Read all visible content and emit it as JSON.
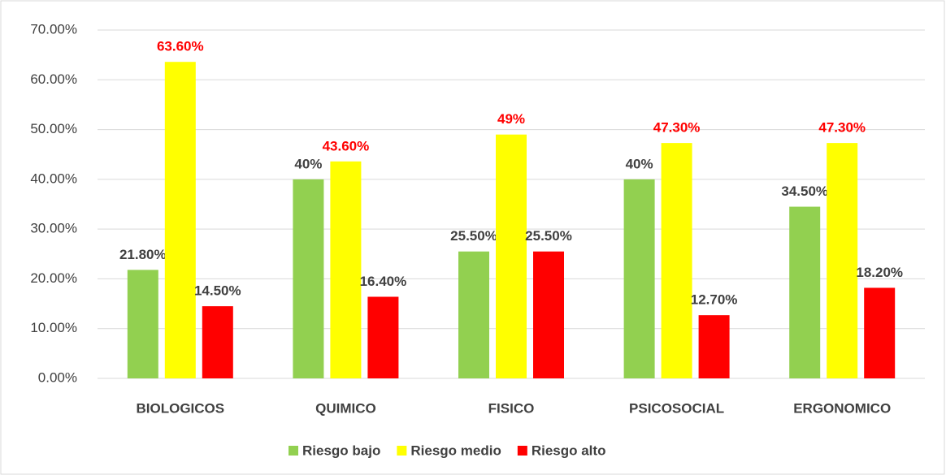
{
  "chart_data": {
    "type": "bar",
    "categories": [
      "BIOLOGICOS",
      "QUIMICO",
      "FISICO",
      "PSICOSOCIAL",
      "ERGONOMICO"
    ],
    "series": [
      {
        "name": "Riesgo bajo",
        "color": "#92d050",
        "label_color": "#404040",
        "values": [
          21.8,
          40,
          25.5,
          40,
          34.5
        ],
        "value_labels": [
          "21.80%",
          "40%",
          "25.50%",
          "40%",
          "34.50%"
        ]
      },
      {
        "name": "Riesgo medio",
        "color": "#ffff00",
        "label_color": "#ff0000",
        "values": [
          63.6,
          43.6,
          49,
          47.3,
          47.3
        ],
        "value_labels": [
          "63.60%",
          "43.60%",
          "49%",
          "47.30%",
          "47.30%"
        ]
      },
      {
        "name": "Riesgo alto",
        "color": "#ff0000",
        "label_color": "#404040",
        "values": [
          14.5,
          16.4,
          25.5,
          12.7,
          18.2
        ],
        "value_labels": [
          "14.50%",
          "16.40%",
          "25.50%",
          "12.70%",
          "18.20%"
        ]
      }
    ],
    "ylim": [
      0,
      70
    ],
    "yticks": [
      {
        "value": 0,
        "label": "0.00%"
      },
      {
        "value": 10,
        "label": "10.00%"
      },
      {
        "value": 20,
        "label": "20.00%"
      },
      {
        "value": 30,
        "label": "30.00%"
      },
      {
        "value": 40,
        "label": "40.00%"
      },
      {
        "value": 50,
        "label": "50.00%"
      },
      {
        "value": 60,
        "label": "60.00%"
      },
      {
        "value": 70,
        "label": "70.00%"
      }
    ],
    "grid": true,
    "legend": "bottom"
  }
}
